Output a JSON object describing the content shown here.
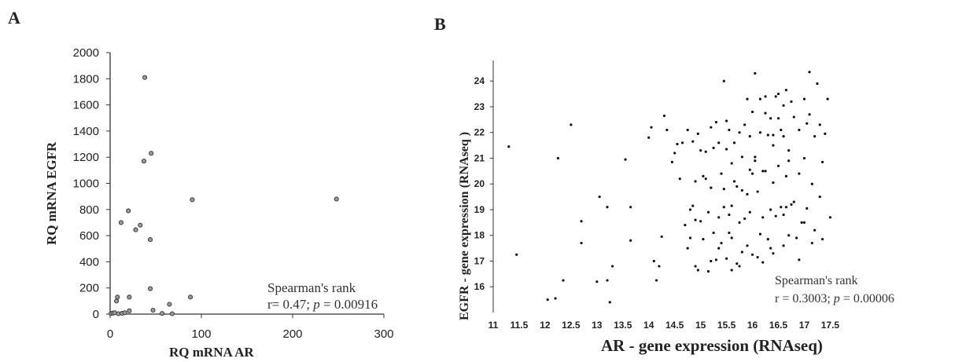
{
  "chart_data": [
    {
      "type": "scatter",
      "panel_label": "A",
      "xlabel": "RQ mRNA AR",
      "ylabel": "RQ mRNA EGFR",
      "xlim": [
        0,
        300
      ],
      "ylim": [
        0,
        2000
      ],
      "x_ticks": [
        "0",
        "100",
        "200",
        "300"
      ],
      "y_ticks": [
        "0",
        "200",
        "400",
        "600",
        "800",
        "1000",
        "1200",
        "1400",
        "1600",
        "1800",
        "2000"
      ],
      "annotation": {
        "line1": "Spearman's rank",
        "line2_prefix": "r= 0.47; ",
        "line2_p": "p",
        "line2_suffix": " = 0.00916"
      },
      "points": [
        [
          38,
          1810
        ],
        [
          45,
          1230
        ],
        [
          37,
          1170
        ],
        [
          90,
          875
        ],
        [
          248,
          880
        ],
        [
          20,
          790
        ],
        [
          12,
          700
        ],
        [
          33,
          680
        ],
        [
          28,
          645
        ],
        [
          44,
          570
        ],
        [
          44,
          195
        ],
        [
          8,
          130
        ],
        [
          21,
          130
        ],
        [
          88,
          130
        ],
        [
          65,
          75
        ],
        [
          21,
          25
        ],
        [
          47,
          30
        ],
        [
          1,
          5
        ],
        [
          3,
          8
        ],
        [
          5,
          10
        ],
        [
          7,
          100
        ],
        [
          9,
          3
        ],
        [
          13,
          6
        ],
        [
          16,
          10
        ],
        [
          57,
          5
        ],
        [
          68,
          3
        ]
      ]
    },
    {
      "type": "scatter",
      "panel_label": "B",
      "xlabel": "AR - gene expression (RNAseq)",
      "ylabel": "EGFR - gene expression (RNAseq )",
      "xlim": [
        11,
        17.6
      ],
      "ylim": [
        15,
        24.8
      ],
      "x_ticks": [
        "11",
        "11.5",
        "12",
        "12.5",
        "13",
        "13.5",
        "14",
        "14.5",
        "15",
        "15.5",
        "16",
        "16.5",
        "17",
        "17.5"
      ],
      "y_ticks": [
        "16",
        "17",
        "18",
        "19",
        "20",
        "21",
        "22",
        "23",
        "24"
      ],
      "annotation": {
        "line1": "Spearman's rank",
        "line2_prefix": "r = 0.3003; ",
        "line2_p": "p",
        "line2_suffix": " = 0.00006"
      },
      "points": [
        [
          11.3,
          21.45
        ],
        [
          11.45,
          17.25
        ],
        [
          12.05,
          15.5
        ],
        [
          12.2,
          15.55
        ],
        [
          12.25,
          21.0
        ],
        [
          12.35,
          16.25
        ],
        [
          12.5,
          22.3
        ],
        [
          12.7,
          18.55
        ],
        [
          12.7,
          17.7
        ],
        [
          13.0,
          16.2
        ],
        [
          13.05,
          19.5
        ],
        [
          13.2,
          16.25
        ],
        [
          13.2,
          19.1
        ],
        [
          13.25,
          15.4
        ],
        [
          13.3,
          16.8
        ],
        [
          13.55,
          20.95
        ],
        [
          13.65,
          17.8
        ],
        [
          13.65,
          19.1
        ],
        [
          14.0,
          21.8
        ],
        [
          14.05,
          22.2
        ],
        [
          14.1,
          17.0
        ],
        [
          14.2,
          16.8
        ],
        [
          14.25,
          17.95
        ],
        [
          14.3,
          22.65
        ],
        [
          14.35,
          22.1
        ],
        [
          14.15,
          16.25
        ],
        [
          14.45,
          20.85
        ],
        [
          14.5,
          21.2
        ],
        [
          14.55,
          21.55
        ],
        [
          14.6,
          20.2
        ],
        [
          14.65,
          21.6
        ],
        [
          14.7,
          18.4
        ],
        [
          14.75,
          22.1
        ],
        [
          14.8,
          17.9
        ],
        [
          14.85,
          19.15
        ],
        [
          14.9,
          16.8
        ],
        [
          14.95,
          21.95
        ],
        [
          15.0,
          18.55
        ],
        [
          15.05,
          20.3
        ],
        [
          15.1,
          21.25
        ],
        [
          15.15,
          16.6
        ],
        [
          15.2,
          19.85
        ],
        [
          15.25,
          21.4
        ],
        [
          15.3,
          22.4
        ],
        [
          15.35,
          18.7
        ],
        [
          15.35,
          17.5
        ],
        [
          15.4,
          20.4
        ],
        [
          15.45,
          24.0
        ],
        [
          15.5,
          22.45
        ],
        [
          15.5,
          17.1
        ],
        [
          15.55,
          18.1
        ],
        [
          15.6,
          19.15
        ],
        [
          15.65,
          21.6
        ],
        [
          15.65,
          20.1
        ],
        [
          15.7,
          16.9
        ],
        [
          15.75,
          18.5
        ],
        [
          15.8,
          21.05
        ],
        [
          15.8,
          19.75
        ],
        [
          15.85,
          22.3
        ],
        [
          15.9,
          17.6
        ],
        [
          15.95,
          21.85
        ],
        [
          15.95,
          18.9
        ],
        [
          16.0,
          22.8
        ],
        [
          16.05,
          20.9
        ],
        [
          16.05,
          24.3
        ],
        [
          16.1,
          17.15
        ],
        [
          16.1,
          19.7
        ],
        [
          16.15,
          18.05
        ],
        [
          16.15,
          22.0
        ],
        [
          16.2,
          20.5
        ],
        [
          16.25,
          23.4
        ],
        [
          16.3,
          21.9
        ],
        [
          16.3,
          17.85
        ],
        [
          16.35,
          19.0
        ],
        [
          16.35,
          22.55
        ],
        [
          16.4,
          21.5
        ],
        [
          16.4,
          17.3
        ],
        [
          16.45,
          18.75
        ],
        [
          16.5,
          23.5
        ],
        [
          16.5,
          20.7
        ],
        [
          16.55,
          22.1
        ],
        [
          16.55,
          19.1
        ],
        [
          16.6,
          17.6
        ],
        [
          16.65,
          23.65
        ],
        [
          16.65,
          20.3
        ],
        [
          16.7,
          18.0
        ],
        [
          16.7,
          21.3
        ],
        [
          16.75,
          23.2
        ],
        [
          16.8,
          19.3
        ],
        [
          16.8,
          22.6
        ],
        [
          16.85,
          17.9
        ],
        [
          16.9,
          20.4
        ],
        [
          16.9,
          22.1
        ],
        [
          16.95,
          18.5
        ],
        [
          17.0,
          23.3
        ],
        [
          17.0,
          21.0
        ],
        [
          17.05,
          19.05
        ],
        [
          17.1,
          22.7
        ],
        [
          17.1,
          24.35
        ],
        [
          17.15,
          20.0
        ],
        [
          17.2,
          18.2
        ],
        [
          17.2,
          21.85
        ],
        [
          17.25,
          23.9
        ],
        [
          17.3,
          19.5
        ],
        [
          17.3,
          22.3
        ],
        [
          17.35,
          17.85
        ],
        [
          17.35,
          20.85
        ],
        [
          17.4,
          21.95
        ],
        [
          17.45,
          23.3
        ],
        [
          17.5,
          18.7
        ],
        [
          16.6,
          21.85
        ],
        [
          16.6,
          18.8
        ],
        [
          16.65,
          19.1
        ],
        [
          16.4,
          21.9
        ],
        [
          16.45,
          23.4
        ],
        [
          16.4,
          20.05
        ],
        [
          16.2,
          18.7
        ],
        [
          16.2,
          16.95
        ],
        [
          16.25,
          22.75
        ],
        [
          16.0,
          20.4
        ],
        [
          16.0,
          17.25
        ],
        [
          15.9,
          23.3
        ],
        [
          15.95,
          20.55
        ],
        [
          15.85,
          18.65
        ],
        [
          15.8,
          17.35
        ],
        [
          15.75,
          22.0
        ],
        [
          15.7,
          19.9
        ],
        [
          15.6,
          17.9
        ],
        [
          15.6,
          20.8
        ],
        [
          15.55,
          22.1
        ],
        [
          15.5,
          21.35
        ],
        [
          15.45,
          19.8
        ],
        [
          15.4,
          17.7
        ],
        [
          15.35,
          21.6
        ],
        [
          15.3,
          17.05
        ],
        [
          15.25,
          18.1
        ],
        [
          15.2,
          22.2
        ],
        [
          15.2,
          17.0
        ],
        [
          15.15,
          18.9
        ],
        [
          15.1,
          20.2
        ],
        [
          15.05,
          17.85
        ],
        [
          15.0,
          21.3
        ],
        [
          14.95,
          16.65
        ],
        [
          14.9,
          18.6
        ],
        [
          14.9,
          20.1
        ],
        [
          14.85,
          21.65
        ],
        [
          14.8,
          19.0
        ],
        [
          14.75,
          17.5
        ],
        [
          15.45,
          19.1
        ],
        [
          15.55,
          18.8
        ],
        [
          15.6,
          16.65
        ],
        [
          15.75,
          16.8
        ],
        [
          15.9,
          19.6
        ],
        [
          16.05,
          21.05
        ],
        [
          16.15,
          23.3
        ],
        [
          16.25,
          20.5
        ],
        [
          16.35,
          17.5
        ],
        [
          16.5,
          22.55
        ],
        [
          16.6,
          23.05
        ],
        [
          16.7,
          20.9
        ],
        [
          16.75,
          19.2
        ],
        [
          16.9,
          17.05
        ],
        [
          17.0,
          18.5
        ],
        [
          17.05,
          22.35
        ],
        [
          17.15,
          17.7
        ]
      ]
    }
  ]
}
